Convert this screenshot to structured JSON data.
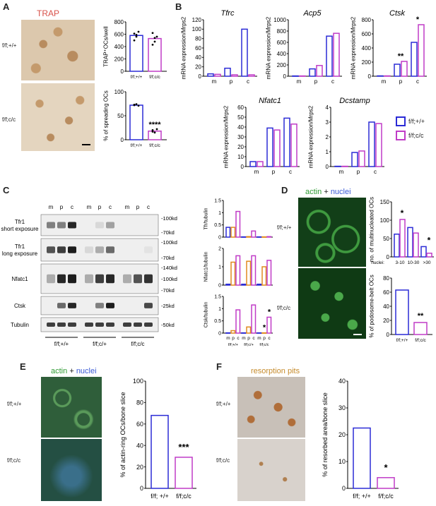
{
  "panels": {
    "A": {
      "label": "A",
      "stain_title": "TRAP",
      "row_labels": [
        "f/f;+/+",
        "f/f;c/c"
      ],
      "chart1": {
        "type": "bar",
        "ylabel": "TRAP⁺OCs/well",
        "ylim": [
          0,
          800
        ],
        "yticks": [
          0,
          200,
          400,
          600,
          800
        ],
        "categories": [
          "f/f;+/+",
          "f/f;c/c"
        ],
        "values": [
          580,
          530
        ],
        "points": [
          [
            610,
            560,
            640,
            500,
            590
          ],
          [
            620,
            480,
            560,
            430,
            540
          ]
        ]
      },
      "chart2": {
        "type": "bar",
        "ylabel": "% of spreading OCs",
        "ylim": [
          0,
          100
        ],
        "yticks": [
          0,
          50,
          100
        ],
        "categories": [
          "f/f;+/+",
          "f/f;c/c"
        ],
        "values": [
          72,
          18
        ],
        "points": [
          [
            72,
            74,
            71,
            73
          ],
          [
            20,
            15,
            22,
            17
          ]
        ],
        "sig": [
          "",
          "****"
        ]
      }
    },
    "B": {
      "label": "B",
      "ylabel": "mRNA expression/Mrps2",
      "groups": [
        "m",
        "p",
        "c"
      ],
      "legend": [
        "f/f;+/+",
        "f/f;c/c"
      ],
      "charts": [
        {
          "title": "Tfrc",
          "ylim": [
            0,
            120
          ],
          "yticks": [
            0,
            20,
            40,
            60,
            80,
            100,
            120
          ],
          "values": [
            [
              5,
              4
            ],
            [
              17,
              3
            ],
            [
              100,
              3
            ]
          ],
          "sig": [
            "",
            "",
            ""
          ]
        },
        {
          "title": "Acp5",
          "ylim": [
            0,
            1000
          ],
          "yticks": [
            0,
            200,
            400,
            600,
            800,
            1000
          ],
          "values": [
            [
              5,
              5
            ],
            [
              130,
              190
            ],
            [
              710,
              760
            ]
          ],
          "sig": [
            "",
            "",
            ""
          ]
        },
        {
          "title": "Ctsk",
          "ylim": [
            0,
            800
          ],
          "yticks": [
            0,
            200,
            400,
            600,
            800
          ],
          "values": [
            [
              5,
              5
            ],
            [
              170,
              210
            ],
            [
              480,
              730
            ]
          ],
          "sig": [
            "",
            "**",
            "*"
          ]
        },
        {
          "title": "Nfatc1",
          "ylim": [
            0,
            60
          ],
          "yticks": [
            0,
            10,
            20,
            30,
            40,
            50,
            60
          ],
          "values": [
            [
              5,
              5
            ],
            [
              39,
              37
            ],
            [
              49,
              43
            ]
          ],
          "sig": [
            "",
            "",
            ""
          ]
        },
        {
          "title": "Dcstamp",
          "ylim": [
            0,
            4
          ],
          "yticks": [
            0,
            1,
            2,
            3,
            4
          ],
          "values": [
            [
              0.02,
              0.02
            ],
            [
              0.95,
              1.05
            ],
            [
              3.0,
              2.9
            ]
          ],
          "sig": [
            "",
            "",
            ""
          ]
        }
      ]
    },
    "C": {
      "label": "C",
      "lane_labels": [
        "m",
        "p",
        "c",
        "m",
        "p",
        "c",
        "m",
        "p",
        "c"
      ],
      "genotypes": [
        "f/f;+/+",
        "f/f;c/+",
        "f/f;c/c"
      ],
      "blots": [
        {
          "name": "Tfr1",
          "sub": "short exposure",
          "markers": [
            "-100kd",
            "-70kd"
          ]
        },
        {
          "name": "Tfr1",
          "sub": "long exposure",
          "markers": [
            "-100kd",
            "-70kd"
          ]
        },
        {
          "name": "Nfatc1",
          "sub": "",
          "markers": [
            "-140kd",
            "-100kd",
            "-70kd"
          ]
        },
        {
          "name": "Ctsk",
          "sub": "",
          "markers": [
            "-25kd"
          ]
        },
        {
          "name": "Tubulin",
          "sub": "",
          "markers": [
            "-50kd"
          ]
        }
      ],
      "charts": [
        {
          "ylabel": "Tfr/tubulin",
          "ylim": [
            0,
            1.5
          ],
          "yticks": [
            0,
            0.5,
            1.0,
            1.5
          ],
          "values": [
            0.4,
            0.4,
            1.05,
            0.01,
            0.02,
            0.25,
            0.01,
            0.01,
            0.02
          ],
          "sig": [
            "",
            "",
            "",
            "",
            "",
            "",
            "",
            "",
            ""
          ]
        },
        {
          "ylabel": "Nfatc1/tubulin",
          "ylim": [
            0,
            2
          ],
          "yticks": [
            0,
            1,
            2
          ],
          "values": [
            0.05,
            1.25,
            1.6,
            0.05,
            1.3,
            1.6,
            0.05,
            1.0,
            1.35
          ],
          "sig": [
            "",
            "",
            "",
            "",
            "",
            "",
            "",
            "",
            ""
          ]
        },
        {
          "ylabel": "Ctsk/tubulin",
          "ylim": [
            0,
            1.5
          ],
          "yticks": [
            0,
            0.5,
            1.0,
            1.5
          ],
          "values": [
            0.01,
            0.1,
            0.95,
            0.01,
            0.25,
            1.15,
            0.01,
            0.01,
            0.65
          ],
          "sig": [
            "",
            "",
            "",
            "",
            "",
            "",
            "",
            "*",
            "*"
          ]
        }
      ],
      "xlabels": [
        "m",
        "p",
        "c",
        "m",
        "p",
        "c",
        "m",
        "p",
        "c"
      ]
    },
    "D": {
      "label": "D",
      "stain_title_a": "actin",
      "stain_plus": "+",
      "stain_title_b": "nuclei",
      "row_labels": [
        "f/f;+/+",
        "f/f;c/c"
      ],
      "chart1": {
        "ylabel": "no. of multinucleated OCs",
        "ylim": [
          0,
          150
        ],
        "yticks": [
          0,
          50,
          100,
          150
        ],
        "xprefix": "nuclei:",
        "categories": [
          "3-10",
          "10-30",
          ">30"
        ],
        "values": [
          [
            62,
            102
          ],
          [
            80,
            65
          ],
          [
            28,
            10
          ]
        ],
        "sig": [
          "*",
          "",
          "*"
        ]
      },
      "chart2": {
        "ylabel": "% of podosome-belt OCs",
        "ylim": [
          0,
          80
        ],
        "yticks": [
          0,
          20,
          40,
          60,
          80
        ],
        "categories": [
          "f/f;+/+",
          "f/f;c/c"
        ],
        "values": [
          63,
          17
        ],
        "sig": [
          "",
          "**"
        ]
      }
    },
    "E": {
      "label": "E",
      "stain_title_a": "actin",
      "stain_plus": "+",
      "stain_title_b": "nuclei",
      "row_labels": [
        "f/f;+/+",
        "f/f;c/c"
      ],
      "chart": {
        "ylabel": "% of actin-ring OCs/bone slice",
        "ylim": [
          0,
          100
        ],
        "yticks": [
          0,
          20,
          40,
          60,
          80,
          100
        ],
        "categories": [
          "f/f; +/+",
          "f/f;c/c"
        ],
        "values": [
          68,
          29
        ],
        "sig": [
          "",
          "***"
        ]
      }
    },
    "F": {
      "label": "F",
      "stain_title": "resorption pits",
      "row_labels": [
        "f/f;+/+",
        "f/f;c/c"
      ],
      "chart": {
        "ylabel": "% of resorbed area/bone slice",
        "ylim": [
          0,
          40
        ],
        "yticks": [
          0,
          10,
          20,
          30,
          40
        ],
        "categories": [
          "f/f; +/+",
          "f/f;c/c"
        ],
        "values": [
          22.5,
          4
        ],
        "sig": [
          "",
          "*"
        ]
      }
    }
  },
  "colors": {
    "blue": "#2b2bd6",
    "magenta": "#c03cc7",
    "orange": "#e08a1e",
    "trap_bg": "#d9c6ad",
    "green_bg": "#0f3a14"
  }
}
